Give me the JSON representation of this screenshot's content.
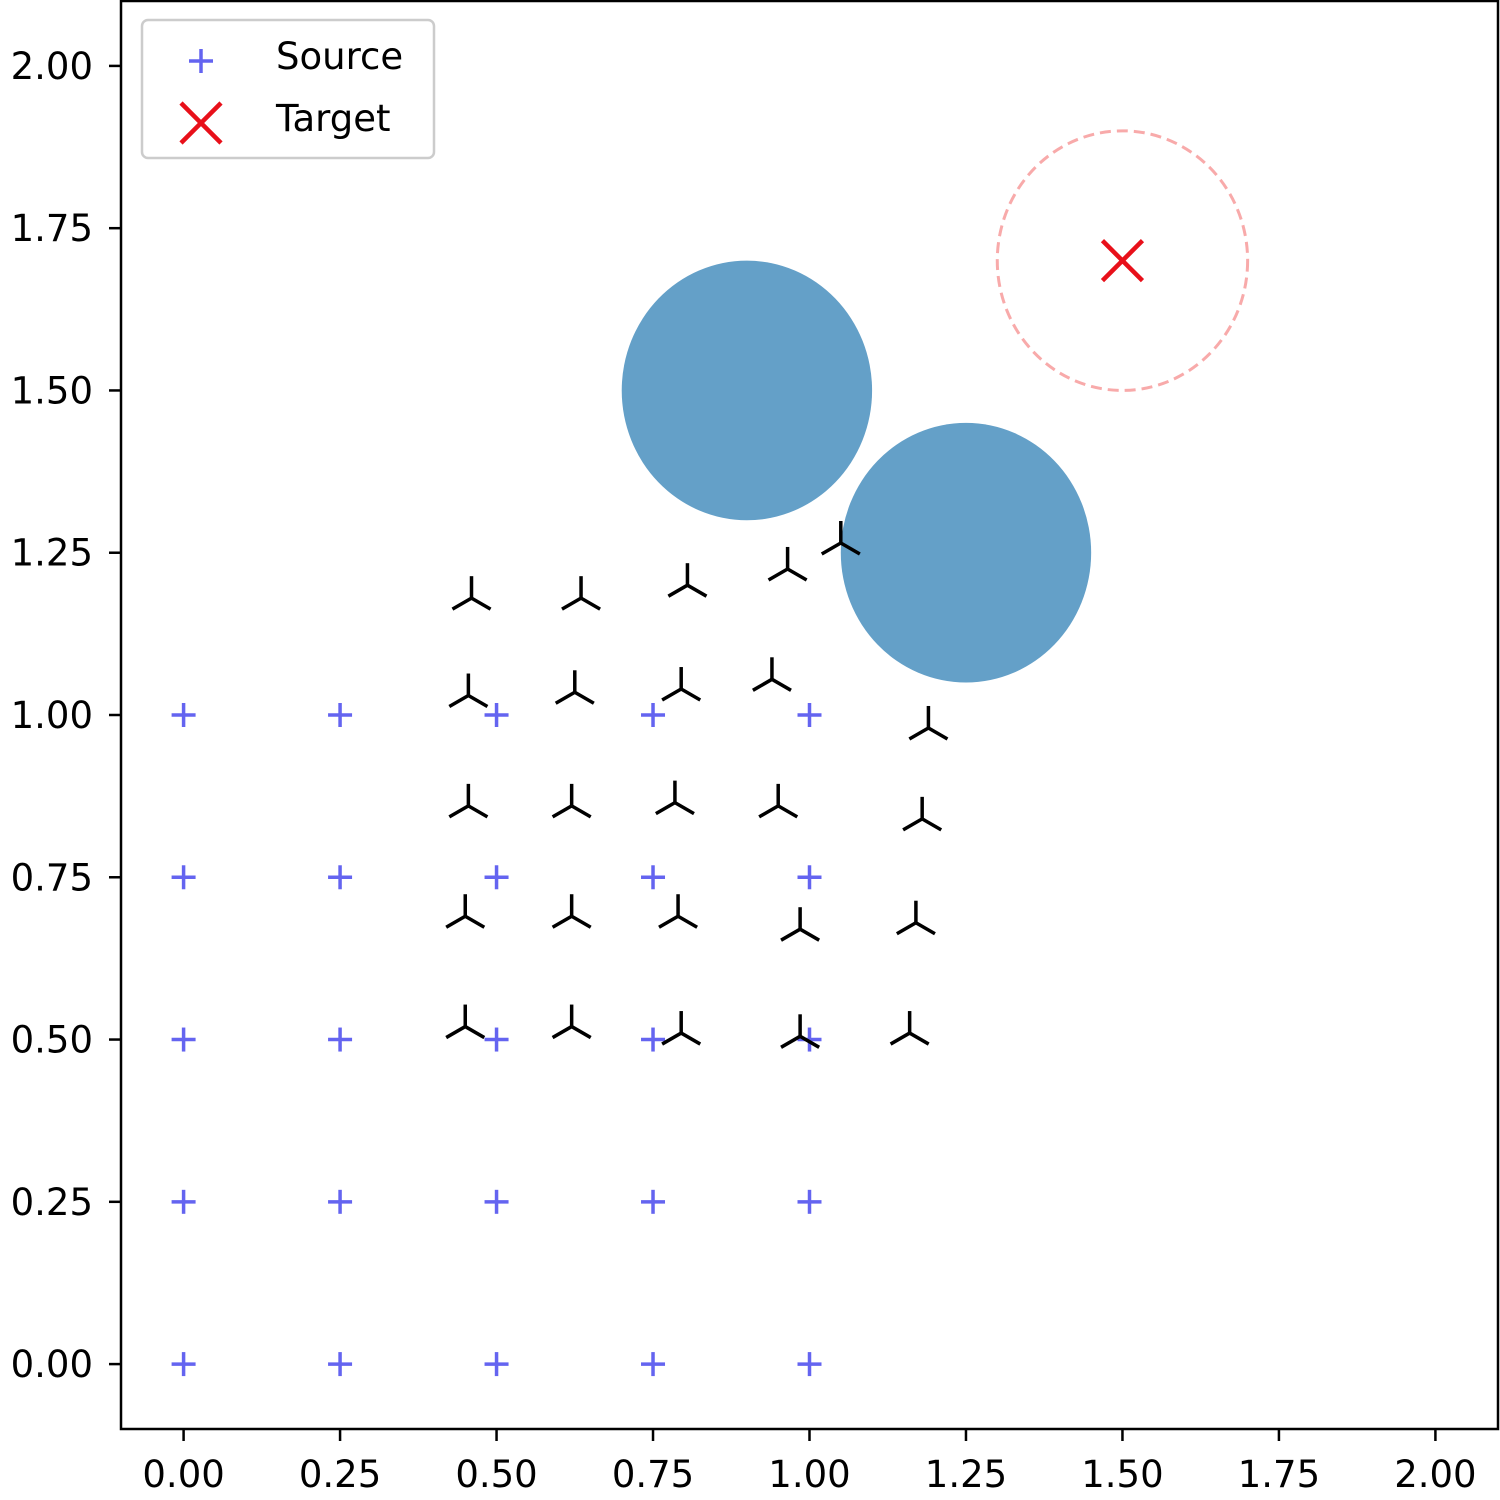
{
  "chart_data": {
    "type": "scatter",
    "title": "",
    "xlabel": "",
    "ylabel": "",
    "xlim": [
      -0.1,
      2.1
    ],
    "ylim": [
      -0.1,
      2.1
    ],
    "x_ticks": [
      "0.00",
      "0.25",
      "0.50",
      "0.75",
      "1.00",
      "1.25",
      "1.50",
      "1.75",
      "2.00"
    ],
    "y_ticks": [
      "0.00",
      "0.25",
      "0.50",
      "0.75",
      "1.00",
      "1.25",
      "1.50",
      "1.75",
      "2.00"
    ],
    "grid": false,
    "legend": {
      "placement": "upper-left",
      "entries": [
        {
          "label": "Source",
          "marker": "plus",
          "color": "#6464f0"
        },
        {
          "label": "Target",
          "marker": "x",
          "color": "#e8101a"
        }
      ]
    },
    "colors": {
      "source": "#6464f0",
      "target": "#e8101a",
      "obstacle": "#64a0c8",
      "target_radius": "#f8aaaa",
      "moved": "#000000"
    },
    "series": [
      {
        "name": "Source",
        "marker": "plus",
        "points": [
          [
            0.0,
            0.0
          ],
          [
            0.25,
            0.0
          ],
          [
            0.5,
            0.0
          ],
          [
            0.75,
            0.0
          ],
          [
            1.0,
            0.0
          ],
          [
            0.0,
            0.25
          ],
          [
            0.25,
            0.25
          ],
          [
            0.5,
            0.25
          ],
          [
            0.75,
            0.25
          ],
          [
            1.0,
            0.25
          ],
          [
            0.0,
            0.5
          ],
          [
            0.25,
            0.5
          ],
          [
            0.5,
            0.5
          ],
          [
            0.75,
            0.5
          ],
          [
            1.0,
            0.5
          ],
          [
            0.0,
            0.75
          ],
          [
            0.25,
            0.75
          ],
          [
            0.5,
            0.75
          ],
          [
            0.75,
            0.75
          ],
          [
            1.0,
            0.75
          ],
          [
            0.0,
            1.0
          ],
          [
            0.25,
            1.0
          ],
          [
            0.5,
            1.0
          ],
          [
            0.75,
            1.0
          ],
          [
            1.0,
            1.0
          ]
        ]
      },
      {
        "name": "Target",
        "marker": "x",
        "points": [
          [
            1.5,
            1.7
          ]
        ]
      },
      {
        "marker": "tri-down",
        "points": [
          [
            0.45,
            0.52
          ],
          [
            0.62,
            0.52
          ],
          [
            0.795,
            0.51
          ],
          [
            0.985,
            0.505
          ],
          [
            1.16,
            0.51
          ],
          [
            0.45,
            0.69
          ],
          [
            0.62,
            0.69
          ],
          [
            0.79,
            0.69
          ],
          [
            0.985,
            0.67
          ],
          [
            1.17,
            0.68
          ],
          [
            0.455,
            0.86
          ],
          [
            0.62,
            0.86
          ],
          [
            0.785,
            0.865
          ],
          [
            0.95,
            0.86
          ],
          [
            1.18,
            0.84
          ],
          [
            0.455,
            1.03
          ],
          [
            0.625,
            1.035
          ],
          [
            0.795,
            1.04
          ],
          [
            0.94,
            1.055
          ],
          [
            1.19,
            0.98
          ],
          [
            0.46,
            1.18
          ],
          [
            0.635,
            1.18
          ],
          [
            0.805,
            1.2
          ],
          [
            0.965,
            1.225
          ],
          [
            1.05,
            1.265
          ]
        ]
      }
    ],
    "obstacles": [
      {
        "center": [
          0.9,
          1.5
        ],
        "radius": 0.2
      },
      {
        "center": [
          1.25,
          1.25
        ],
        "radius": 0.2
      }
    ],
    "target_region": {
      "center": [
        1.5,
        1.7
      ],
      "radius": 0.2,
      "style": "dashed"
    }
  }
}
